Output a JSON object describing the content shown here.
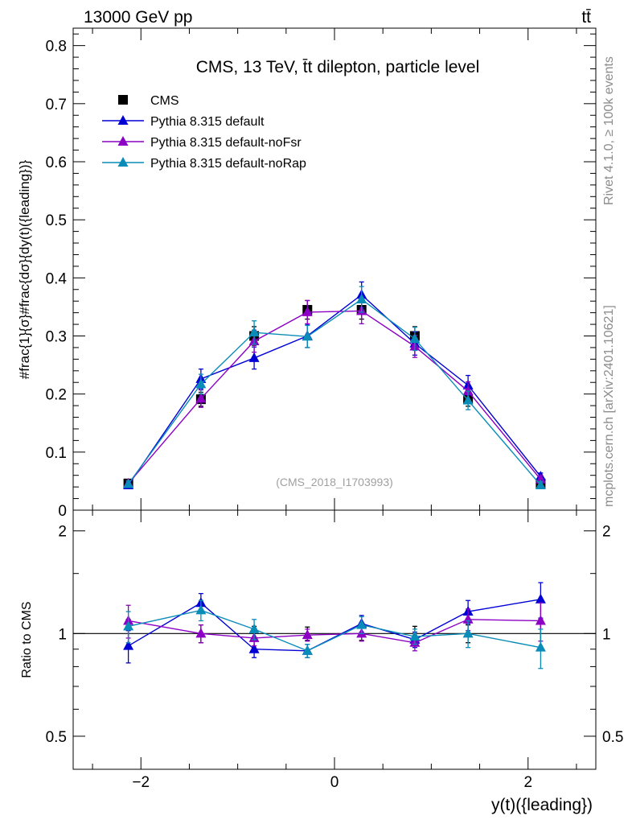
{
  "header": {
    "energy_label": "13000 GeV pp",
    "process_label": "tt̄",
    "side_top": "Rivet 4.1.0, ≥ 100k events",
    "side_bottom": "mcplots.cern.ch [arXiv:2401.10621]"
  },
  "chart_data": {
    "type": "scatter",
    "title": "CMS, 13 TeV, t̄t dilepton, particle level",
    "watermark": "(CMS_2018_I1703993)",
    "xlabel": "y(t)({leading})",
    "ylabel": "#frac{1}{σ}#frac{dσ}{dy(t)({leading})}",
    "ratio_ylabel": "Ratio to CMS",
    "xlim": [
      -2.7,
      2.7
    ],
    "ylim": [
      0,
      0.83
    ],
    "ratio_ylim": [
      0.4,
      2.3
    ],
    "xticks": [
      -2,
      0,
      2
    ],
    "xtick_labels": [
      "−2",
      "0",
      "2"
    ],
    "yticks": [
      0.1,
      0.2,
      0.3,
      0.4,
      0.5,
      0.6,
      0.7,
      0.8
    ],
    "ytick_labels": [
      "0.1",
      "0.2",
      "0.3",
      "0.4",
      "0.5",
      "0.6",
      "0.7",
      "0.8"
    ],
    "ytick_zero": "0",
    "ratio_yticks": [
      0.5,
      1,
      2
    ],
    "ratio_ytick_labels": [
      "0.5",
      "1",
      "2"
    ],
    "x": [
      -2.13,
      -1.38,
      -0.83,
      -0.28,
      0.28,
      0.83,
      1.38,
      2.13
    ],
    "series": [
      {
        "name": "CMS",
        "color": "#000000",
        "marker": "square",
        "values": [
          0.046,
          0.191,
          0.3,
          0.345,
          0.345,
          0.3,
          0.191,
          0.046
        ],
        "errors": [
          0.004,
          0.012,
          0.016,
          0.016,
          0.016,
          0.016,
          0.012,
          0.004
        ],
        "ratio": [
          1,
          1,
          1,
          1,
          1,
          1,
          1,
          1
        ],
        "ratio_errors": [
          0.1,
          0.06,
          0.05,
          0.045,
          0.045,
          0.05,
          0.06,
          0.1
        ]
      },
      {
        "name": "Pythia 8.315 default",
        "color": "#0000d4",
        "marker": "triangle",
        "values": [
          0.043,
          0.226,
          0.262,
          0.3,
          0.371,
          0.287,
          0.215,
          0.058
        ],
        "errors": [
          0.005,
          0.017,
          0.019,
          0.02,
          0.022,
          0.02,
          0.017,
          0.006
        ],
        "ratio": [
          0.92,
          1.23,
          0.9,
          0.89,
          1.07,
          0.96,
          1.16,
          1.26
        ],
        "ratio_errors": [
          0.1,
          0.08,
          0.05,
          0.04,
          0.06,
          0.05,
          0.09,
          0.15
        ]
      },
      {
        "name": "Pythia 8.315 default-noFsr",
        "color": "#8b00c4",
        "marker": "triangle",
        "values": [
          0.046,
          0.192,
          0.291,
          0.341,
          0.343,
          0.282,
          0.205,
          0.053
        ],
        "errors": [
          0.005,
          0.015,
          0.019,
          0.02,
          0.022,
          0.019,
          0.016,
          0.006
        ],
        "ratio": [
          1.09,
          1.0,
          0.97,
          0.99,
          1.0,
          0.94,
          1.1,
          1.09
        ],
        "ratio_errors": [
          0.12,
          0.06,
          0.05,
          0.04,
          0.05,
          0.05,
          0.08,
          0.14
        ]
      },
      {
        "name": "Pythia 8.315 default-noRap",
        "color": "#0a8cb8",
        "marker": "triangle",
        "values": [
          0.045,
          0.217,
          0.306,
          0.299,
          0.363,
          0.295,
          0.189,
          0.043
        ],
        "errors": [
          0.005,
          0.017,
          0.02,
          0.019,
          0.022,
          0.02,
          0.016,
          0.006
        ],
        "ratio": [
          1.05,
          1.17,
          1.03,
          0.89,
          1.06,
          0.98,
          1.0,
          0.91
        ],
        "ratio_errors": [
          0.11,
          0.08,
          0.07,
          0.04,
          0.06,
          0.05,
          0.09,
          0.12
        ]
      }
    ],
    "legend_position": "top-left"
  }
}
